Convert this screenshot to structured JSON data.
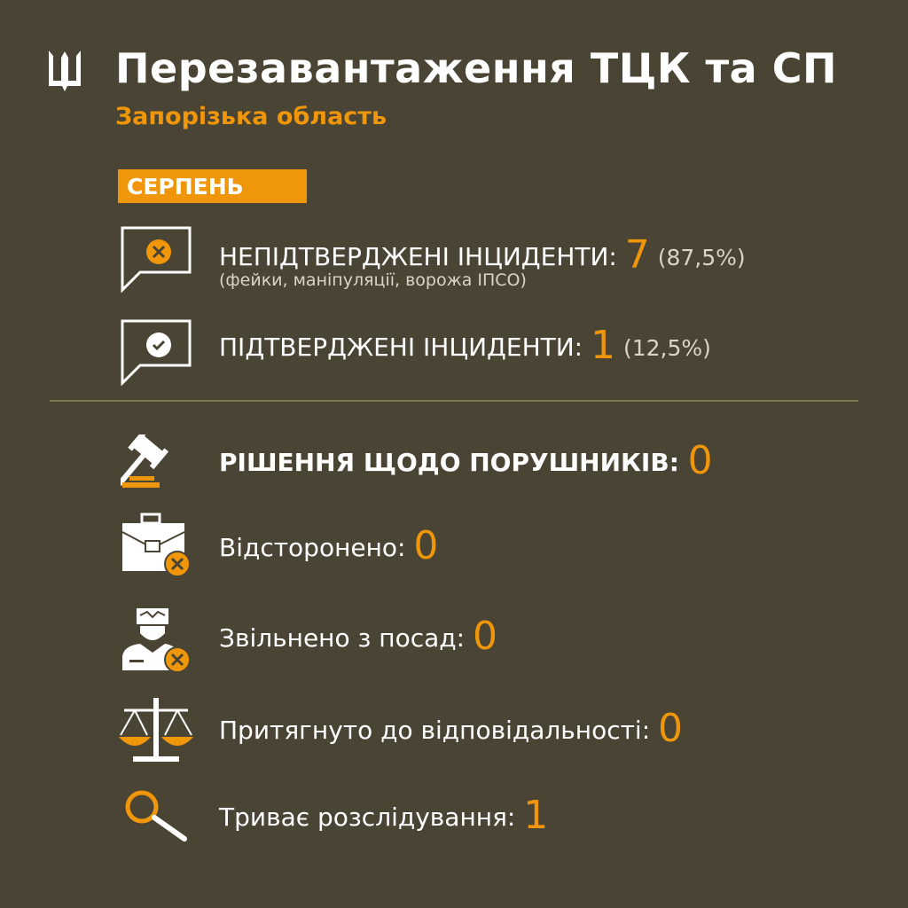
{
  "header": {
    "title": "Перезавантаження ТЦК та СП",
    "subtitle": "Запорізька область",
    "logo_icon": "trident-icon"
  },
  "period": "СЕРПЕНЬ",
  "incidents": {
    "unconfirmed": {
      "label": "НЕПІДТВЕРДЖЕНІ ІНЦИДЕНТИ:",
      "value": "7",
      "percent": "(87,5%)",
      "note": "(фейки, маніпуляції, ворожа ІПСО)"
    },
    "confirmed": {
      "label": "ПІДТВЕРДЖЕНІ ІНЦИДЕНТИ:",
      "value": "1",
      "percent": "(12,5%)"
    }
  },
  "decisions": {
    "label": "РІШЕННЯ ЩОДО ПОРУШНИКІВ:",
    "value": "0"
  },
  "stats": [
    {
      "label": "Відсторонено:",
      "value": "0",
      "icon": "briefcase-x-icon"
    },
    {
      "label": "Звільнено з посад:",
      "value": "0",
      "icon": "officer-x-icon"
    },
    {
      "label": "Притягнуто до відповідальності:",
      "value": "0",
      "icon": "scales-icon"
    },
    {
      "label": "Триває розслідування:",
      "value": "1",
      "icon": "magnifier-icon"
    }
  ],
  "colors": {
    "background": "#4a4434",
    "accent": "#f0960a",
    "divider": "#7d7a52"
  }
}
